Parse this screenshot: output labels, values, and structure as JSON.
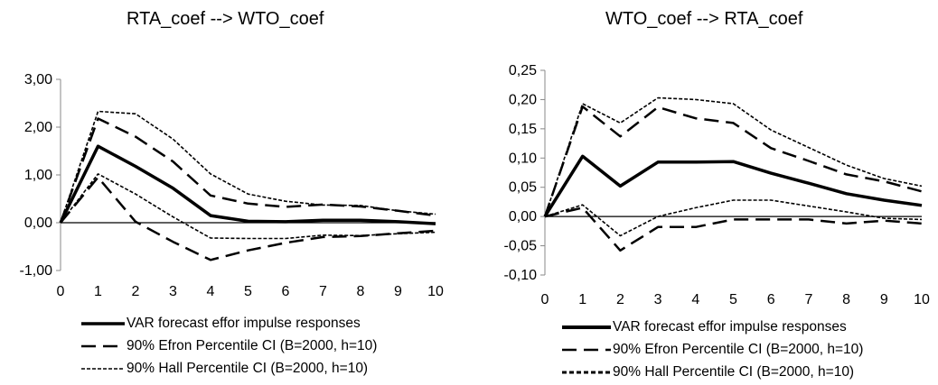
{
  "chart_data": [
    {
      "type": "line",
      "title": "RTA_coef --> WTO_coef",
      "x": [
        0,
        1,
        2,
        3,
        4,
        5,
        6,
        7,
        8,
        9,
        10
      ],
      "ylim": [
        -1.0,
        3.0
      ],
      "yticks": [
        -1.0,
        0.0,
        1.0,
        2.0,
        3.0
      ],
      "ytick_labels": [
        "-1,00",
        "0,00",
        "1,00",
        "2,00",
        "3,00"
      ],
      "xtick_labels": [
        "0",
        "1",
        "2",
        "3",
        "4",
        "5",
        "6",
        "7",
        "8",
        "9",
        "10"
      ],
      "grid": false,
      "legend_position": "bottom",
      "series": [
        {
          "name": "VAR forecast effor impulse responses",
          "style": "solid",
          "values": [
            0,
            1.6,
            1.18,
            0.72,
            0.15,
            0.03,
            0.02,
            0.05,
            0.05,
            0.02,
            -0.02
          ]
        },
        {
          "name": "90% Efron Percentile CI (B=2000, h=10)",
          "style": "dash",
          "values": [
            0,
            2.18,
            1.8,
            1.28,
            0.57,
            0.4,
            0.33,
            0.38,
            0.34,
            0.25,
            0.15
          ]
        },
        {
          "name": "90% Efron Percentile CI (B=2000, h=10)",
          "style": "dash",
          "values": [
            0,
            0.95,
            0.02,
            -0.4,
            -0.78,
            -0.58,
            -0.42,
            -0.3,
            -0.28,
            -0.22,
            -0.17
          ]
        },
        {
          "name": "90% Hall Percentile CI (B=2000, h=10)",
          "style": "dot",
          "values": [
            0,
            2.33,
            2.28,
            1.75,
            1.02,
            0.6,
            0.45,
            0.37,
            0.36,
            0.25,
            0.18
          ]
        },
        {
          "name": "90% Hall Percentile CI (B=2000, h=10)",
          "style": "dot",
          "values": [
            0,
            1.02,
            0.6,
            0.12,
            -0.32,
            -0.33,
            -0.33,
            -0.26,
            -0.27,
            -0.23,
            -0.2
          ]
        }
      ]
    },
    {
      "type": "line",
      "title": "WTO_coef --> RTA_coef",
      "x": [
        0,
        1,
        2,
        3,
        4,
        5,
        6,
        7,
        8,
        9,
        10
      ],
      "ylim": [
        -0.1,
        0.25
      ],
      "yticks": [
        -0.1,
        -0.05,
        0.0,
        0.05,
        0.1,
        0.15,
        0.2,
        0.25
      ],
      "ytick_labels": [
        "-0,10",
        "-0,05",
        "0,00",
        "0,05",
        "0,10",
        "0,15",
        "0,20",
        "0,25"
      ],
      "xtick_labels": [
        "0",
        "1",
        "2",
        "3",
        "4",
        "5",
        "6",
        "7",
        "8",
        "9",
        "10"
      ],
      "grid": false,
      "legend_position": "bottom",
      "series": [
        {
          "name": "VAR forecast effor impulse responses",
          "style": "solid",
          "values": [
            0,
            0.103,
            0.052,
            0.093,
            0.093,
            0.094,
            0.074,
            0.057,
            0.039,
            0.028,
            0.019
          ]
        },
        {
          "name": "90% Efron Percentile CI (B=2000, h=10)",
          "style": "dash",
          "values": [
            0,
            0.188,
            0.137,
            0.187,
            0.168,
            0.16,
            0.117,
            0.095,
            0.072,
            0.06,
            0.043
          ]
        },
        {
          "name": "90% Efron Percentile CI (B=2000, h=10)",
          "style": "dash",
          "values": [
            0,
            0.015,
            -0.058,
            -0.018,
            -0.018,
            -0.005,
            -0.005,
            -0.005,
            -0.012,
            -0.007,
            -0.012
          ]
        },
        {
          "name": "90% Hall Percentile CI (B=2000, h=10)",
          "style": "dot",
          "values": [
            0,
            0.193,
            0.16,
            0.203,
            0.2,
            0.193,
            0.148,
            0.118,
            0.088,
            0.065,
            0.052
          ]
        },
        {
          "name": "90% Hall Percentile CI (B=2000, h=10)",
          "style": "dot",
          "values": [
            0,
            0.02,
            -0.033,
            0.0,
            0.015,
            0.028,
            0.028,
            0.018,
            0.008,
            -0.003,
            -0.005
          ]
        }
      ]
    }
  ],
  "legend": [
    {
      "label": "VAR forecast effor impulse responses",
      "style": "solid"
    },
    {
      "label": "90% Efron Percentile CI (B=2000, h=10)",
      "style": "dash"
    },
    {
      "label": "90% Hall Percentile CI (B=2000, h=10)",
      "style": "dot"
    }
  ]
}
